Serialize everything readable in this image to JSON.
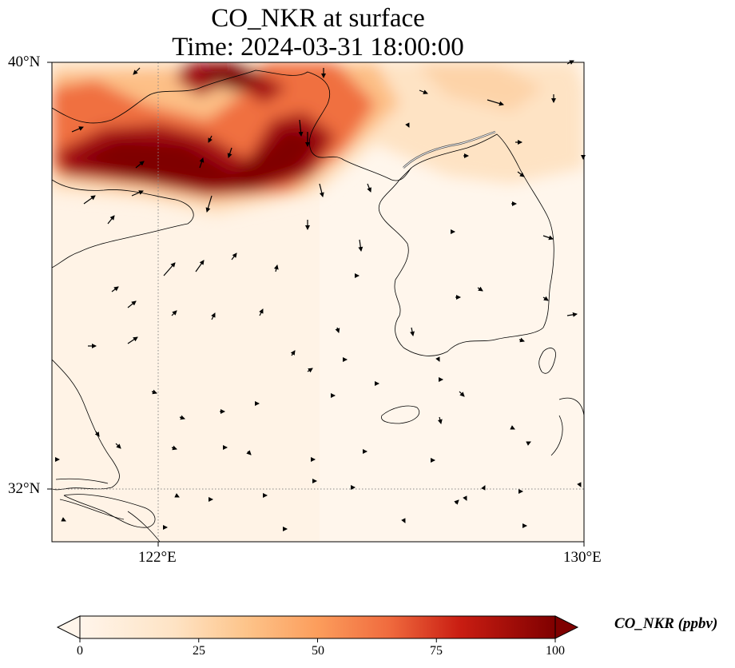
{
  "title": {
    "line1": "CO_NKR at surface",
    "line2": "Time: 2024-03-31 18:00:00"
  },
  "axes": {
    "lat_labels": [
      "40°N",
      "32°N"
    ],
    "lon_labels": [
      "122°E",
      "130°E"
    ],
    "gridlines": "dotted at 122°E and 32°N"
  },
  "colorbar": {
    "label": "CO_NKR (ppbv)",
    "ticks": [
      "0",
      "25",
      "50",
      "75",
      "100"
    ],
    "min": 0,
    "max": 100,
    "extend": "both",
    "colormap": [
      "#fff5eb",
      "#fdd0a2",
      "#fd8d3c",
      "#d94801",
      "#a50f15",
      "#7f0000"
    ]
  },
  "map": {
    "extent": {
      "lon_min": 120,
      "lon_max": 130,
      "lat_min": 31,
      "lat_max": 40
    },
    "field": "high CO_NKR (>100 ppbv) over Bohai Sea / Liaodong area in north-west; low values (<10 ppbv) over Yellow Sea and Korean Peninsula",
    "features": [
      "coastlines",
      "wind vectors"
    ]
  }
}
